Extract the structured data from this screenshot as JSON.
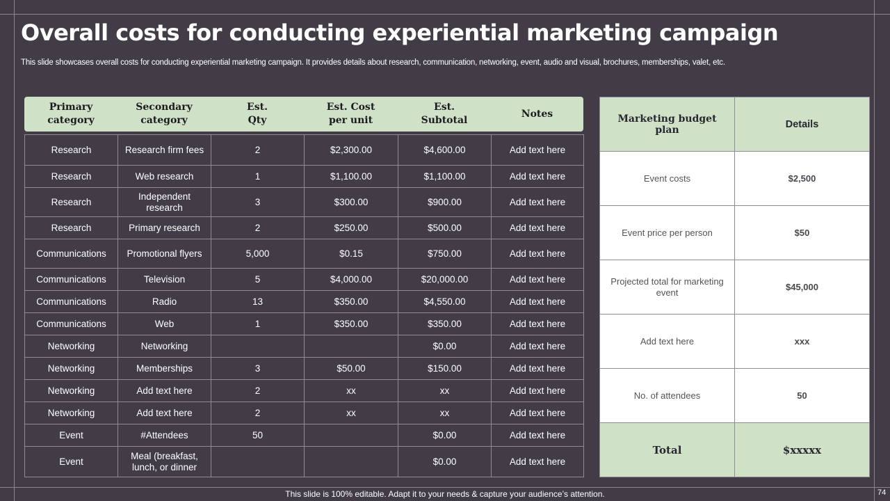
{
  "slide": {
    "title": "Overall costs for conducting experiential marketing campaign",
    "subtitle": "This slide showcases overall costs for conducting experiential marketing campaign. It provides details about research, communication, networking, event, audio and visual, brochures, memberships, valet, etc.",
    "footer": "This slide is 100% editable. Adapt it to your needs & capture your audience’s attention.",
    "page_number": "74"
  },
  "cost_table": {
    "headers": [
      "Primary\ncategory",
      "Secondary\ncategory",
      "Est.\nQty",
      "Est. Cost\nper unit",
      "Est.\nSubtotal",
      "Notes"
    ],
    "rows": [
      [
        "Research",
        "Research firm fees",
        "2",
        "$2,300.00",
        "$4,600.00",
        "Add text here"
      ],
      [
        "Research",
        "Web research",
        "1",
        "$1,100.00",
        "$1,100.00",
        "Add text here"
      ],
      [
        "Research",
        "Independent research",
        "3",
        "$300.00",
        "$900.00",
        "Add text here"
      ],
      [
        "Research",
        "Primary research",
        "2",
        "$250.00",
        "$500.00",
        "Add text here"
      ],
      [
        "Communications",
        "Promotional flyers",
        "5,000",
        "$0.15",
        "$750.00",
        "Add text here"
      ],
      [
        "Communications",
        "Television",
        "5",
        "$4,000.00",
        "$20,000.00",
        "Add text here"
      ],
      [
        "Communications",
        "Radio",
        "13",
        "$350.00",
        "$4,550.00",
        "Add text here"
      ],
      [
        "Communications",
        "Web",
        "1",
        "$350.00",
        "$350.00",
        "Add text here"
      ],
      [
        "Networking",
        "Networking",
        "",
        "",
        "$0.00",
        "Add text here"
      ],
      [
        "Networking",
        "Memberships",
        "3",
        "$50.00",
        "$150.00",
        "Add text here"
      ],
      [
        "Networking",
        "Add text here",
        "2",
        "xx",
        "xx",
        "Add text here"
      ],
      [
        "Networking",
        "Add text here",
        "2",
        "xx",
        "xx",
        "Add text here"
      ],
      [
        "Event",
        "#Attendees",
        "50",
        "",
        "$0.00",
        "Add text here"
      ],
      [
        "Event",
        "Meal (breakfast, lunch, or dinner",
        "",
        "",
        "$0.00",
        "Add text here"
      ]
    ]
  },
  "budget_table": {
    "headers": [
      "Marketing budget plan",
      "Details"
    ],
    "rows": [
      [
        "Event costs",
        "$2,500"
      ],
      [
        "Event price per person",
        "$50"
      ],
      [
        "Projected total for marketing event",
        "$45,000"
      ],
      [
        "Add text here",
        "xxx"
      ],
      [
        "No. of attendees",
        "50"
      ]
    ],
    "total": [
      "Total",
      "$xxxxx"
    ]
  },
  "colors": {
    "background": "#423c47",
    "header_green": "#cfe2c8",
    "grid_line": "#8f8a94"
  }
}
